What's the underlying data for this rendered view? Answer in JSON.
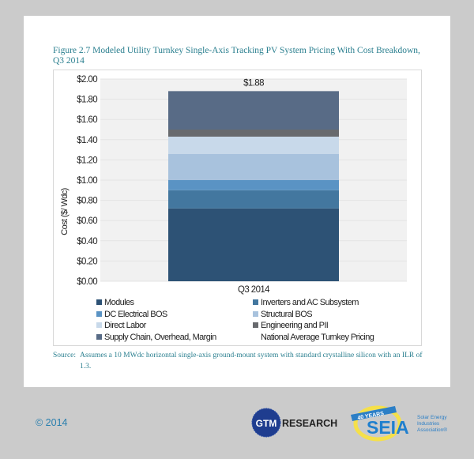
{
  "figure": {
    "title": "Figure 2.7  Modeled Utility Turnkey Single-Axis Tracking PV System Pricing With Cost Breakdown, Q3 2014",
    "source_label": "Source:",
    "source_text": "Assumes a 10 MWdc horizontal single-axis ground-mount system with standard crystalline silicon with an ILR of 1.3."
  },
  "chart_data": {
    "type": "bar",
    "stacked": true,
    "categories": [
      "Q3 2014"
    ],
    "ylabel": "Cost ($/ Wdc)",
    "ylim": [
      0,
      2.0
    ],
    "yticks": [
      "$0.00",
      "$0.20",
      "$0.40",
      "$0.60",
      "$0.80",
      "$1.00",
      "$1.20",
      "$1.40",
      "$1.60",
      "$1.80",
      "$2.00"
    ],
    "grid": true,
    "legend_position": "bottom",
    "total_label": "$1.88",
    "series": [
      {
        "name": "Modules",
        "values": [
          0.72
        ],
        "color": "#2d5275"
      },
      {
        "name": "Inverters and AC Subsystem",
        "values": [
          0.18
        ],
        "color": "#43779f"
      },
      {
        "name": "DC Electrical BOS",
        "values": [
          0.1
        ],
        "color": "#5a93c4"
      },
      {
        "name": "Structural BOS",
        "values": [
          0.26
        ],
        "color": "#a8c2dd"
      },
      {
        "name": "Direct Labor",
        "values": [
          0.17
        ],
        "color": "#c8d9ea"
      },
      {
        "name": "Engineering and PII",
        "values": [
          0.07
        ],
        "color": "#686a6e"
      },
      {
        "name": "Supply Chain, Overhead, Margin",
        "values": [
          0.38
        ],
        "color": "#586b86"
      }
    ],
    "extra_legend": "National Average Turnkey Pricing"
  },
  "footer": {
    "copyright": "© 2014",
    "logo_gtm": "GTM RESEARCH",
    "logo_seia": "SEIA 40 YEARS Solar Energy Industries Association®"
  }
}
